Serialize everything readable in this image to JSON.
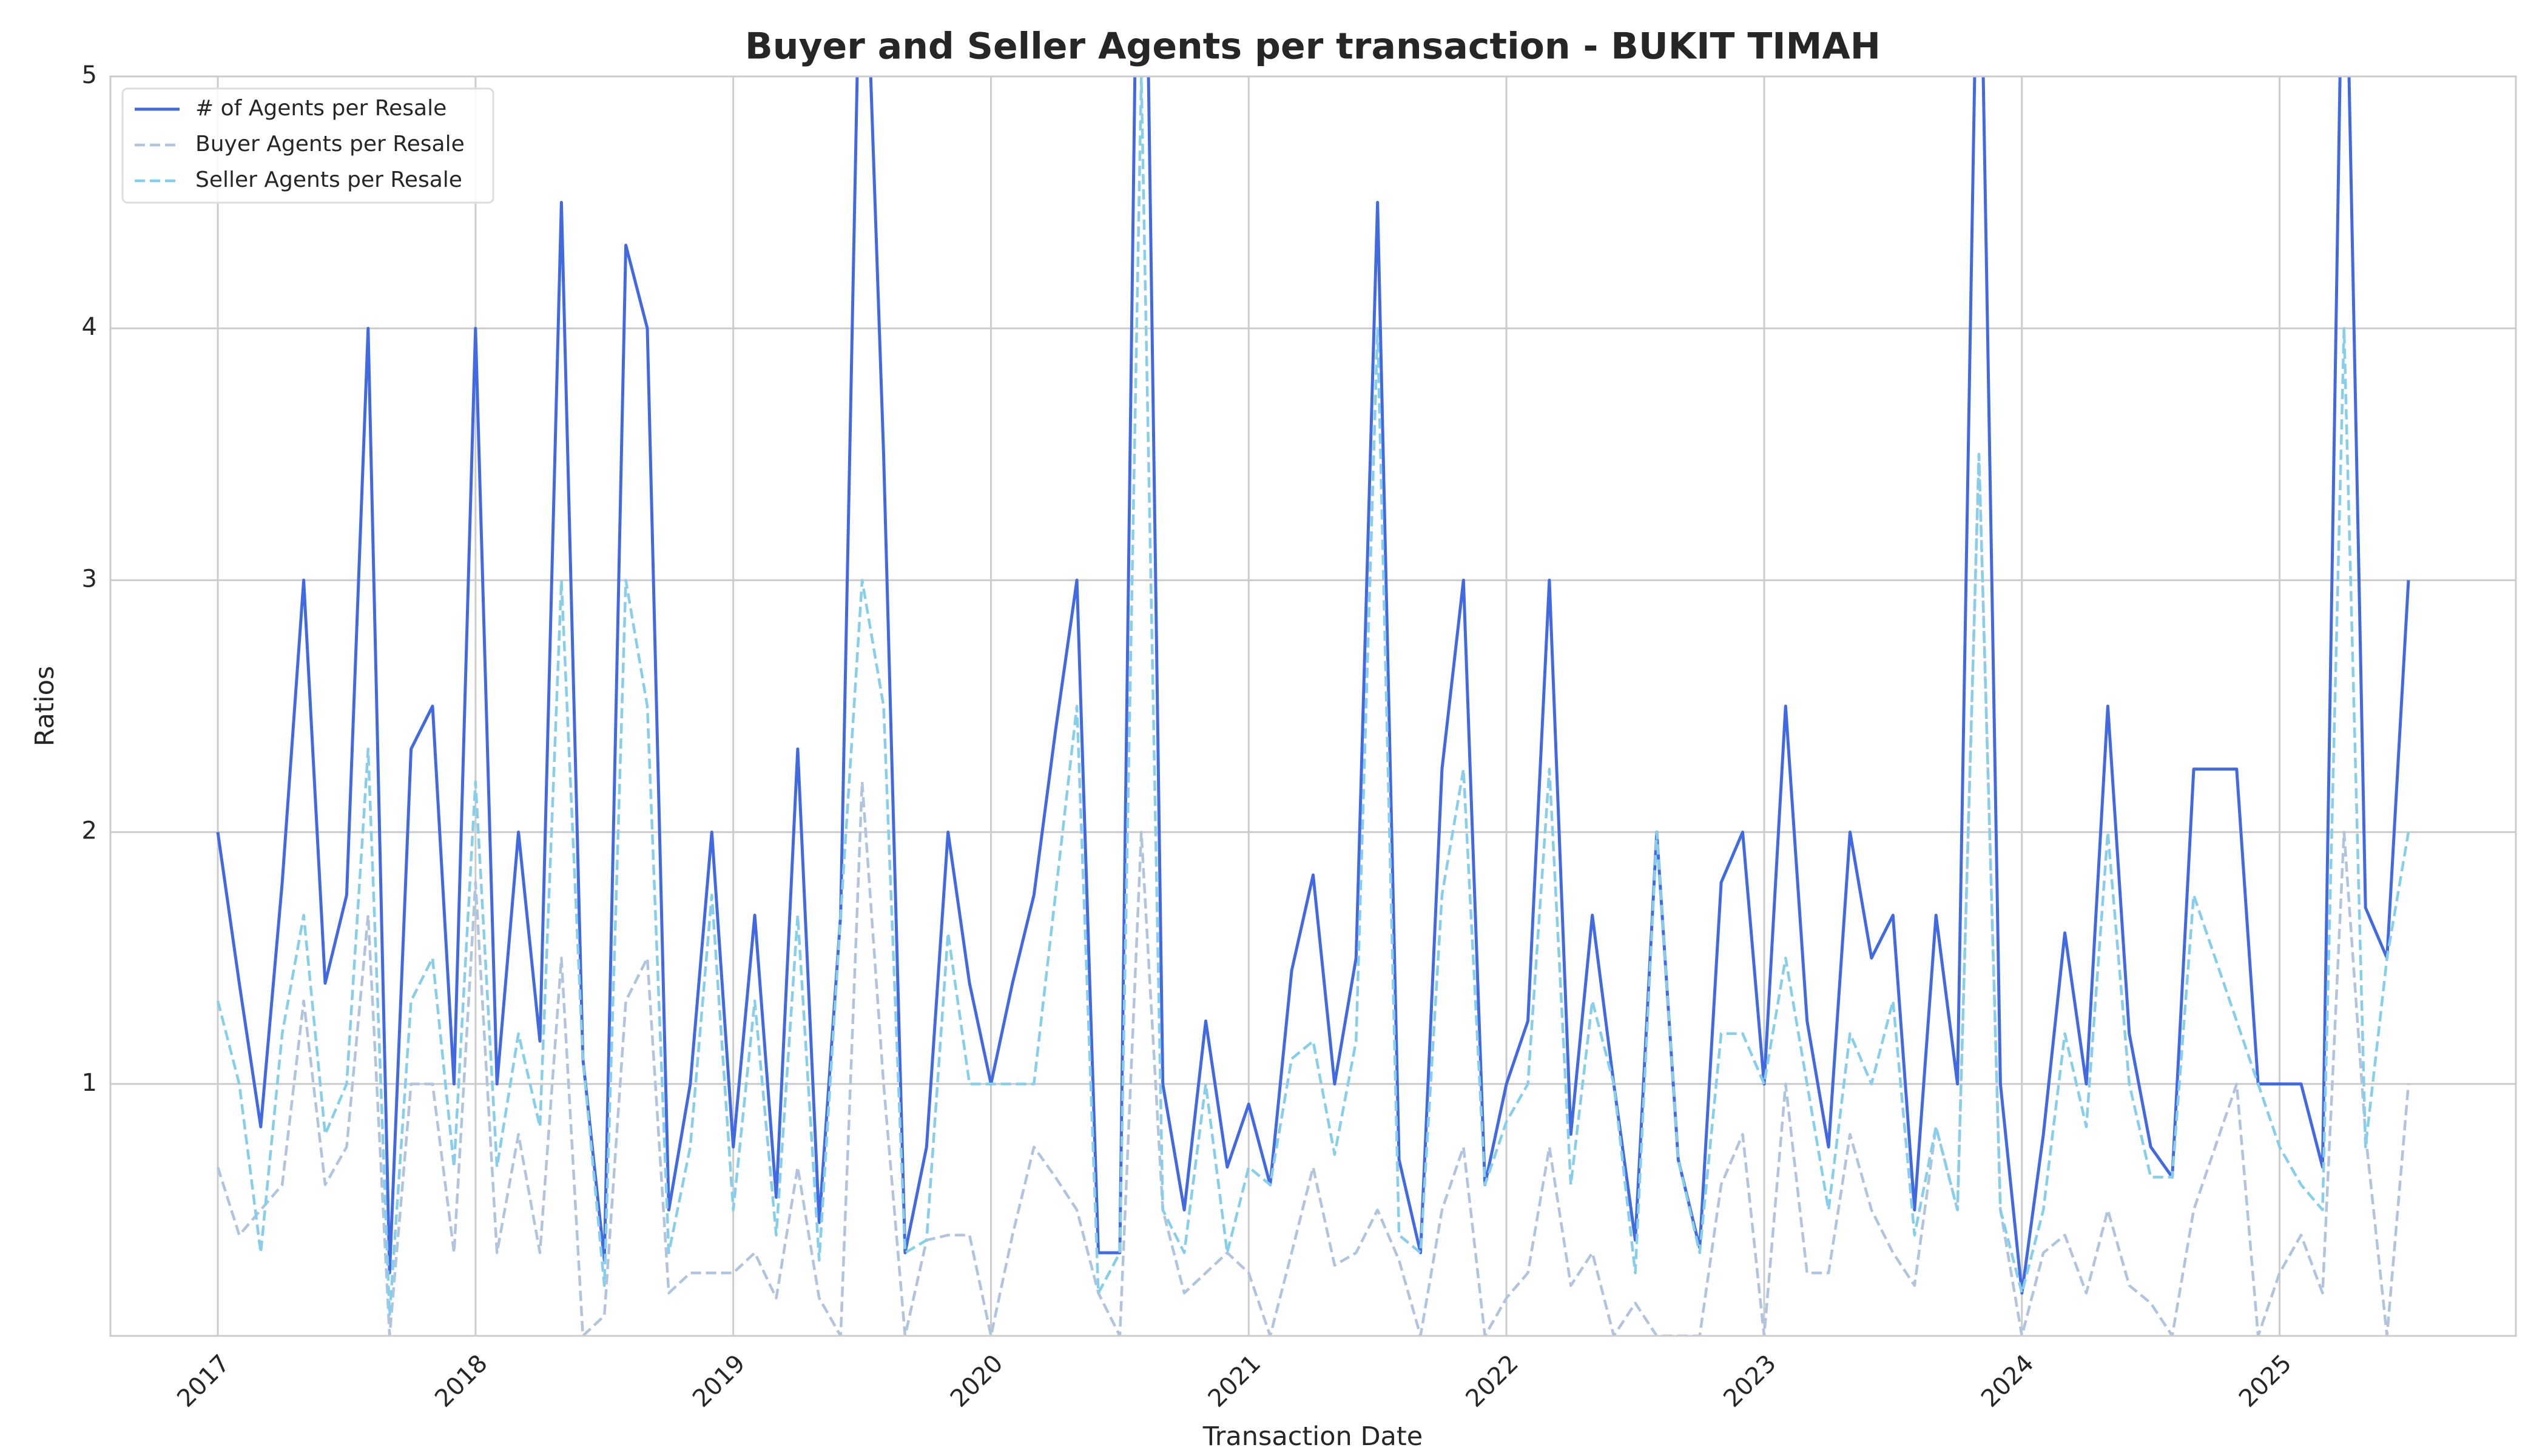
{
  "chart_data": {
    "type": "line",
    "title": "Buyer and Seller Agents per transaction - BUKIT TIMAH",
    "x_label": "Transaction Date",
    "y_label": "Ratios",
    "x": [
      "2017-01",
      "2017-02",
      "2017-03",
      "2017-04",
      "2017-05",
      "2017-06",
      "2017-07",
      "2017-08",
      "2017-09",
      "2017-10",
      "2017-11",
      "2017-12",
      "2018-01",
      "2018-02",
      "2018-03",
      "2018-04",
      "2018-05",
      "2018-06",
      "2018-07",
      "2018-08",
      "2018-09",
      "2018-10",
      "2018-11",
      "2018-12",
      "2019-01",
      "2019-02",
      "2019-03",
      "2019-04",
      "2019-05",
      "2019-06",
      "2019-07",
      "2019-08",
      "2019-09",
      "2019-10",
      "2019-11",
      "2019-12",
      "2020-01",
      "2020-02",
      "2020-03",
      "2020-04",
      "2020-05",
      "2020-06",
      "2020-07",
      "2020-08",
      "2020-09",
      "2020-10",
      "2020-11",
      "2020-12",
      "2021-01",
      "2021-02",
      "2021-03",
      "2021-04",
      "2021-05",
      "2021-06",
      "2021-07",
      "2021-08",
      "2021-09",
      "2021-10",
      "2021-11",
      "2021-12",
      "2022-01",
      "2022-02",
      "2022-03",
      "2022-04",
      "2022-05",
      "2022-06",
      "2022-07",
      "2022-08",
      "2022-09",
      "2022-10",
      "2022-11",
      "2022-12",
      "2023-01",
      "2023-02",
      "2023-03",
      "2023-04",
      "2023-05",
      "2023-06",
      "2023-07",
      "2023-08",
      "2023-09",
      "2023-10",
      "2023-11",
      "2023-12",
      "2024-01",
      "2024-02",
      "2024-03",
      "2024-04",
      "2024-05",
      "2024-06",
      "2024-07",
      "2024-08",
      "2024-09",
      "2024-10",
      "2024-11",
      "2024-12",
      "2025-01",
      "2025-02",
      "2025-03",
      "2025-04",
      "2025-05",
      "2025-06",
      "2025-07"
    ],
    "series": [
      {
        "name": "# of Agents per Resale",
        "color": "#4169e1",
        "dashed": false,
        "values": [
          2.0,
          1.4,
          0.83,
          1.8,
          3.0,
          1.4,
          1.75,
          4.0,
          0.25,
          2.33,
          2.5,
          1.0,
          4.0,
          1.0,
          2.0,
          1.17,
          4.5,
          1.1,
          0.3,
          4.33,
          4.0,
          0.5,
          1.0,
          2.0,
          0.75,
          1.67,
          0.55,
          2.33,
          0.45,
          1.67,
          6.0,
          3.5,
          0.33,
          0.75,
          2.0,
          1.4,
          1.0,
          1.4,
          1.75,
          2.4,
          3.0,
          0.33,
          0.33,
          7.0,
          1.0,
          0.5,
          1.25,
          0.67,
          0.92,
          0.6,
          1.45,
          1.83,
          1.0,
          1.5,
          4.5,
          0.7,
          0.33,
          2.25,
          3.0,
          0.6,
          1.0,
          1.25,
          3.0,
          0.8,
          1.67,
          1.0,
          0.38,
          2.0,
          0.7,
          0.35,
          1.8,
          2.0,
          1.0,
          2.5,
          1.25,
          0.75,
          2.0,
          1.5,
          1.67,
          0.5,
          1.67,
          1.0,
          6.0,
          1.0,
          0.17,
          0.8,
          1.6,
          1.0,
          2.5,
          1.2,
          0.75,
          0.63,
          2.25,
          2.25,
          2.25,
          1.0,
          1.0,
          1.0,
          0.67,
          6.0,
          1.7,
          1.5,
          3.0
        ]
      },
      {
        "name": "Buyer Agents per Resale",
        "color": "#b0c4de",
        "dashed": true,
        "values": [
          0.67,
          0.4,
          0.5,
          0.6,
          1.33,
          0.6,
          0.75,
          1.67,
          0.0,
          1.0,
          1.0,
          0.33,
          1.8,
          0.33,
          0.8,
          0.33,
          1.5,
          0.0,
          0.08,
          1.33,
          1.5,
          0.17,
          0.25,
          0.25,
          0.25,
          0.33,
          0.15,
          0.67,
          0.15,
          0.0,
          2.2,
          1.0,
          0.0,
          0.38,
          0.4,
          0.4,
          0.0,
          0.4,
          0.75,
          0.63,
          0.5,
          0.17,
          0.0,
          2.0,
          0.5,
          0.17,
          0.25,
          0.33,
          0.25,
          0.0,
          0.33,
          0.67,
          0.28,
          0.33,
          0.5,
          0.3,
          0.0,
          0.5,
          0.75,
          0.0,
          0.15,
          0.25,
          0.75,
          0.2,
          0.33,
          0.0,
          0.13,
          0.0,
          0.0,
          0.0,
          0.6,
          0.8,
          0.0,
          1.0,
          0.25,
          0.25,
          0.8,
          0.5,
          0.33,
          0.2,
          0.83,
          0.5,
          3.5,
          0.5,
          0.0,
          0.33,
          0.4,
          0.17,
          0.5,
          0.2,
          0.13,
          0.0,
          0.5,
          0.75,
          1.0,
          0.0,
          0.25,
          0.4,
          0.17,
          2.0,
          0.8,
          0.0,
          1.0
        ]
      },
      {
        "name": "Seller Agents per Resale",
        "color": "#87ceeb",
        "dashed": true,
        "values": [
          1.33,
          1.0,
          0.33,
          1.2,
          1.67,
          0.8,
          1.0,
          2.33,
          0.08,
          1.33,
          1.5,
          0.67,
          2.2,
          0.67,
          1.2,
          0.83,
          3.0,
          1.1,
          0.2,
          3.0,
          2.5,
          0.33,
          0.75,
          1.75,
          0.5,
          1.33,
          0.4,
          1.67,
          0.3,
          1.67,
          3.0,
          2.5,
          0.33,
          0.38,
          1.6,
          1.0,
          1.0,
          1.0,
          1.0,
          1.75,
          2.5,
          0.17,
          0.33,
          5.0,
          0.5,
          0.33,
          1.0,
          0.33,
          0.67,
          0.6,
          1.1,
          1.17,
          0.72,
          1.17,
          4.0,
          0.4,
          0.33,
          1.75,
          2.25,
          0.6,
          0.85,
          1.0,
          2.25,
          0.6,
          1.33,
          1.0,
          0.25,
          2.0,
          0.7,
          0.33,
          1.2,
          1.2,
          1.0,
          1.5,
          1.0,
          0.5,
          1.2,
          1.0,
          1.33,
          0.4,
          0.83,
          0.5,
          3.5,
          0.5,
          0.17,
          0.5,
          1.2,
          0.83,
          2.0,
          1.0,
          0.63,
          0.63,
          1.75,
          1.5,
          1.25,
          1.0,
          0.75,
          0.6,
          0.5,
          4.0,
          0.75,
          1.5,
          2.0
        ]
      }
    ],
    "xlim": [
      "2016-08",
      "2025-12"
    ],
    "xticks": [
      {
        "value": "2017-01",
        "label": "2017"
      },
      {
        "value": "2018-01",
        "label": "2018"
      },
      {
        "value": "2019-01",
        "label": "2019"
      },
      {
        "value": "2020-01",
        "label": "2020"
      },
      {
        "value": "2021-01",
        "label": "2021"
      },
      {
        "value": "2022-01",
        "label": "2022"
      },
      {
        "value": "2023-01",
        "label": "2023"
      },
      {
        "value": "2024-01",
        "label": "2024"
      },
      {
        "value": "2025-01",
        "label": "2025"
      }
    ],
    "ylim": [
      0,
      5
    ],
    "yticks": [
      1,
      2,
      3,
      4,
      5
    ],
    "grid": true,
    "legend": "upper left"
  }
}
